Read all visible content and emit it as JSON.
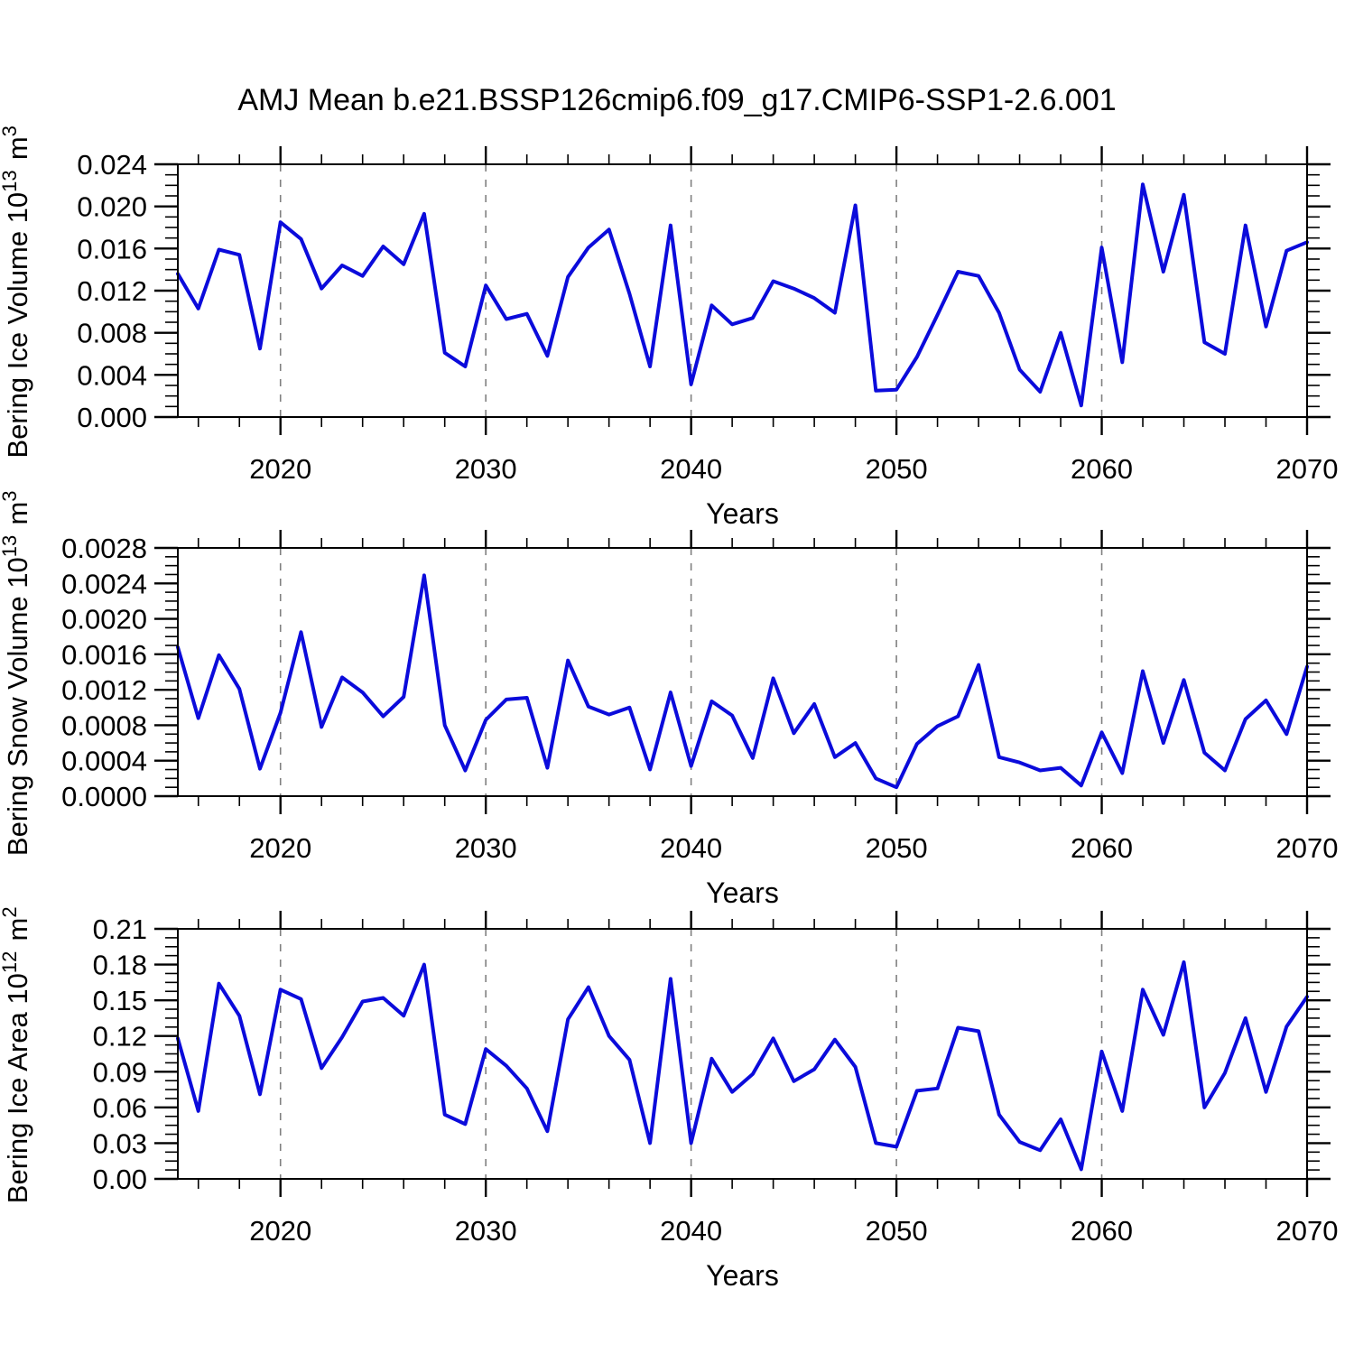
{
  "title": "AMJ Mean b.e21.BSSP126cmip6.f09_g17.CMIP6-SSP1-2.6.001",
  "colors": {
    "line": "#0b0bdb",
    "grid": "#808080",
    "axis": "#000000",
    "background": "#ffffff",
    "text": "#000000"
  },
  "x_axis": {
    "label": "Years",
    "range": [
      2015,
      2070
    ],
    "major_ticks": [
      2020,
      2030,
      2040,
      2050,
      2060,
      2070
    ],
    "minor_step": 2,
    "gridline_years": [
      2020,
      2030,
      2040,
      2050,
      2060
    ]
  },
  "chart_data": [
    {
      "type": "line",
      "name": "bering-ice-volume",
      "ylabel": "Bering Ice Volume 10^13 m^3",
      "ylabel_parts": [
        "Bering Ice Volume 10",
        {
          "sup": "13"
        },
        " m",
        {
          "sup": "3"
        }
      ],
      "ylim": [
        0,
        0.024
      ],
      "ytick_step": 0.004,
      "yminor_step": 0.001,
      "ytick_decimals": 3,
      "x_start": 2015,
      "x_step": 1,
      "values": [
        0.0136,
        0.0103,
        0.0159,
        0.0154,
        0.0065,
        0.0185,
        0.0169,
        0.0122,
        0.0144,
        0.0134,
        0.0162,
        0.0145,
        0.0193,
        0.0061,
        0.0048,
        0.0125,
        0.0093,
        0.0098,
        0.0058,
        0.0133,
        0.0161,
        0.0178,
        0.0117,
        0.0048,
        0.0182,
        0.0031,
        0.0106,
        0.0088,
        0.0094,
        0.0129,
        0.0122,
        0.0113,
        0.0099,
        0.0201,
        0.0025,
        0.0026,
        0.0057,
        0.0097,
        0.0138,
        0.0134,
        0.0099,
        0.0045,
        0.0024,
        0.008,
        0.0011,
        0.0161,
        0.0052,
        0.0221,
        0.0138,
        0.0211,
        0.0071,
        0.006,
        0.0182,
        0.0086,
        0.0158,
        0.0166
      ]
    },
    {
      "type": "line",
      "name": "bering-snow-volume",
      "ylabel": "Bering Snow Volume 10^13 m^3",
      "ylabel_parts": [
        "Bering Snow Volume 10",
        {
          "sup": "13"
        },
        " m",
        {
          "sup": "3"
        }
      ],
      "ylim": [
        0,
        0.0028
      ],
      "ytick_step": 0.0004,
      "yminor_step": 0.0001,
      "ytick_decimals": 4,
      "x_start": 2015,
      "x_step": 1,
      "values": [
        0.00168,
        0.00088,
        0.00159,
        0.00121,
        0.00031,
        0.00094,
        0.00185,
        0.00078,
        0.00134,
        0.00117,
        0.0009,
        0.00112,
        0.00249,
        0.0008,
        0.00029,
        0.00086,
        0.00109,
        0.00111,
        0.00032,
        0.00153,
        0.00101,
        0.00092,
        0.001,
        0.0003,
        0.00117,
        0.00034,
        0.00107,
        0.00091,
        0.00043,
        0.00133,
        0.00071,
        0.00104,
        0.00044,
        0.0006,
        0.0002,
        0.0001,
        0.00059,
        0.00079,
        0.0009,
        0.00148,
        0.00044,
        0.00038,
        0.00029,
        0.00032,
        0.00012,
        0.00072,
        0.00026,
        0.00141,
        0.0006,
        0.00131,
        0.00049,
        0.00029,
        0.00087,
        0.00108,
        0.0007,
        0.00146
      ]
    },
    {
      "type": "line",
      "name": "bering-ice-area",
      "ylabel": "Bering Ice Area 10^12 m^2",
      "ylabel_parts": [
        "Bering Ice Area 10",
        {
          "sup": "12"
        },
        " m",
        {
          "sup": "2"
        }
      ],
      "ylim": [
        0,
        0.21
      ],
      "ytick_step": 0.03,
      "yminor_step": 0.0075,
      "ytick_decimals": 2,
      "x_start": 2015,
      "x_step": 1,
      "values": [
        0.118,
        0.057,
        0.164,
        0.137,
        0.071,
        0.159,
        0.151,
        0.093,
        0.119,
        0.149,
        0.152,
        0.137,
        0.18,
        0.054,
        0.046,
        0.109,
        0.095,
        0.076,
        0.04,
        0.134,
        0.161,
        0.12,
        0.1,
        0.03,
        0.168,
        0.03,
        0.101,
        0.073,
        0.088,
        0.118,
        0.082,
        0.092,
        0.117,
        0.094,
        0.03,
        0.027,
        0.074,
        0.076,
        0.127,
        0.124,
        0.054,
        0.031,
        0.024,
        0.05,
        0.008,
        0.107,
        0.057,
        0.159,
        0.121,
        0.182,
        0.06,
        0.089,
        0.135,
        0.073,
        0.128,
        0.153
      ]
    }
  ]
}
